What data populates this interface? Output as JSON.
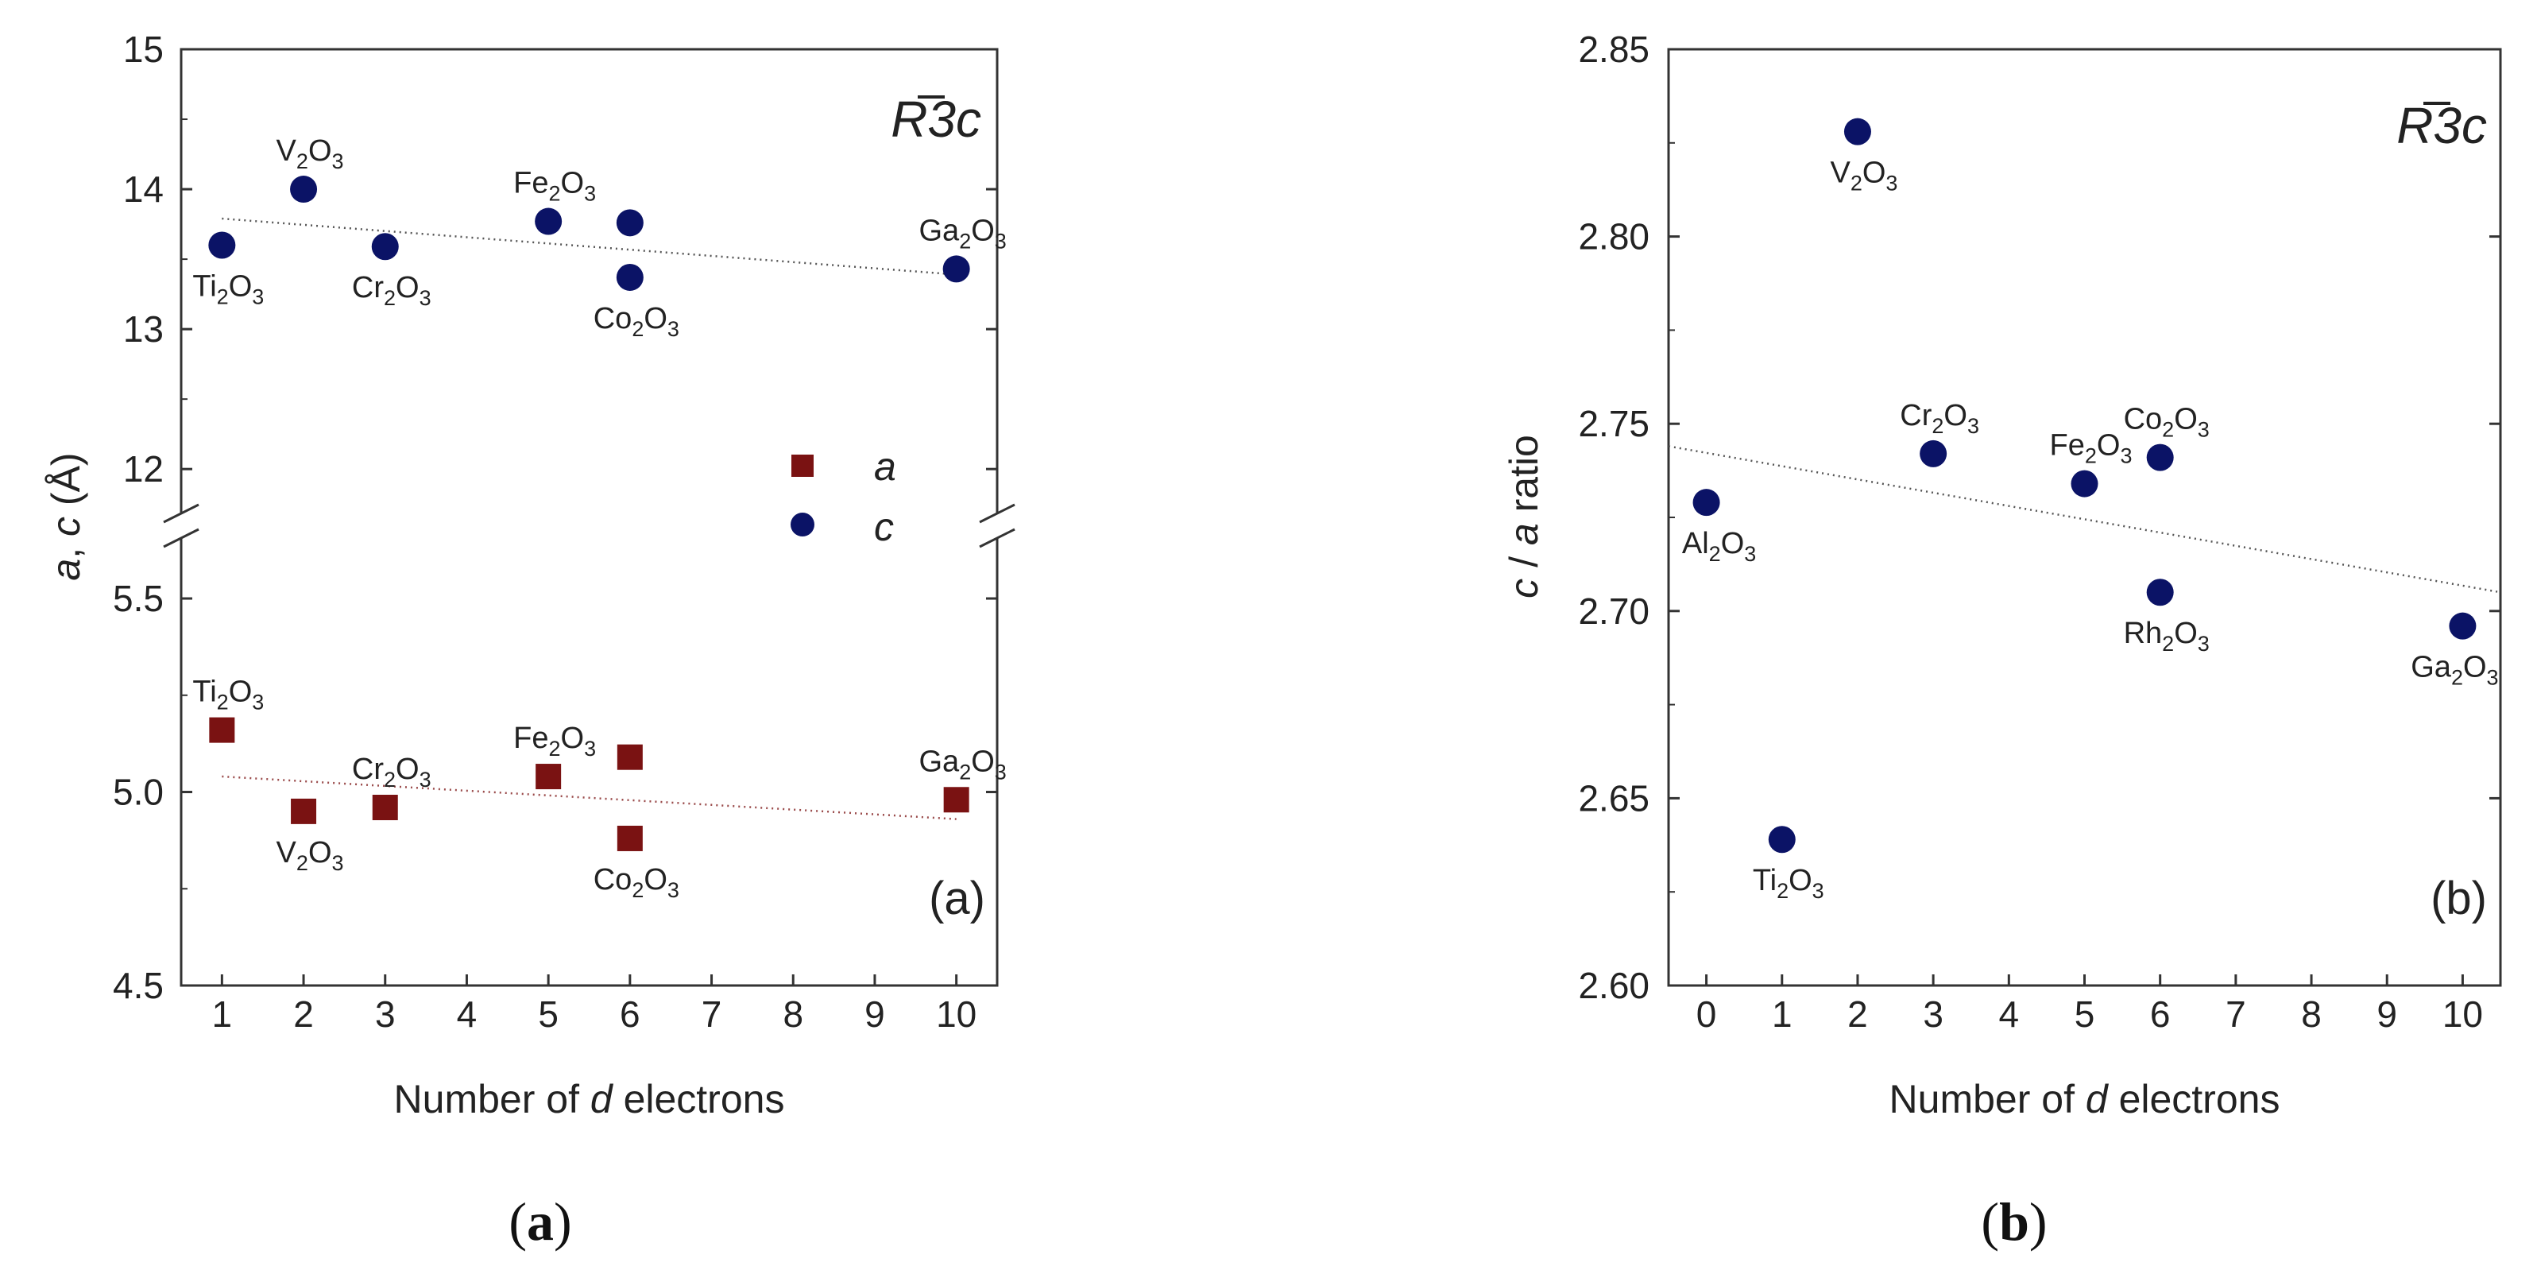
{
  "colors": {
    "circle": "#0b1366",
    "square": "#7a1212",
    "axis": "#333333",
    "trend": "#555555"
  },
  "chart_data": [
    {
      "type": "scatter",
      "panel_tag": "(a)",
      "caption": "(a)",
      "caption_letter": "a",
      "space_group": {
        "letter": "R",
        "digit": "3",
        "suffix": "c"
      },
      "xlabel": {
        "pre": "Number of ",
        "it": "d",
        "post": " electrons"
      },
      "ylabel": {
        "p1": "a",
        "p2": ", ",
        "p3": "c",
        "p4": " (Å)"
      },
      "x_ticks": [
        "1",
        "2",
        "3",
        "4",
        "5",
        "6",
        "7",
        "8",
        "9",
        "10"
      ],
      "x_range": [
        0.5,
        10.5
      ],
      "upper_axis": {
        "ylim": [
          11.7,
          15
        ],
        "ticks": [
          "12",
          "13",
          "14",
          "15"
        ]
      },
      "lower_axis": {
        "ylim": [
          4.5,
          5.65
        ],
        "ticks": [
          "4.5",
          "5.0",
          "5.5"
        ]
      },
      "legend": [
        {
          "marker": "square",
          "label": "a"
        },
        {
          "marker": "circle",
          "label": "c"
        }
      ],
      "series": [
        {
          "name": "c",
          "marker": "circle",
          "axis": "upper",
          "points": [
            {
              "x": 1,
              "y": 13.6,
              "label": [
                "Ti",
                "2",
                "O",
                "3"
              ],
              "pos": "below"
            },
            {
              "x": 2,
              "y": 14.0,
              "label": [
                "V",
                "2",
                "O",
                "3"
              ],
              "pos": "above"
            },
            {
              "x": 3,
              "y": 13.59,
              "label": [
                "Cr",
                "2",
                "O",
                "3"
              ],
              "pos": "below"
            },
            {
              "x": 5,
              "y": 13.77,
              "label": [
                "Fe",
                "2",
                "O",
                "3"
              ],
              "pos": "above"
            },
            {
              "x": 6,
              "y": 13.76,
              "label": null,
              "pos": "none"
            },
            {
              "x": 6,
              "y": 13.37,
              "label": [
                "Co",
                "2",
                "O",
                "3"
              ],
              "pos": "below"
            },
            {
              "x": 10,
              "y": 13.43,
              "label": [
                "Ga",
                "2",
                "O",
                "3"
              ],
              "pos": "above"
            }
          ],
          "trend": {
            "x": [
              1,
              10
            ],
            "y": [
              13.79,
              13.39
            ]
          }
        },
        {
          "name": "a",
          "marker": "square",
          "axis": "lower",
          "points": [
            {
              "x": 1,
              "y": 5.16,
              "label": [
                "Ti",
                "2",
                "O",
                "3"
              ],
              "pos": "above"
            },
            {
              "x": 2,
              "y": 4.95,
              "label": [
                "V",
                "2",
                "O",
                "3"
              ],
              "pos": "below"
            },
            {
              "x": 3,
              "y": 4.96,
              "label": [
                "Cr",
                "2",
                "O",
                "3"
              ],
              "pos": "above"
            },
            {
              "x": 5,
              "y": 5.04,
              "label": [
                "Fe",
                "2",
                "O",
                "3"
              ],
              "pos": "above"
            },
            {
              "x": 6,
              "y": 5.09,
              "label": null,
              "pos": "none"
            },
            {
              "x": 6,
              "y": 4.88,
              "label": [
                "Co",
                "2",
                "O",
                "3"
              ],
              "pos": "below"
            },
            {
              "x": 10,
              "y": 4.98,
              "label": [
                "Ga",
                "2",
                "O",
                "3"
              ],
              "pos": "above"
            }
          ],
          "trend": {
            "x": [
              1,
              10
            ],
            "y": [
              5.04,
              4.93
            ]
          }
        }
      ]
    },
    {
      "type": "scatter",
      "panel_tag": "(b)",
      "caption": "(b)",
      "caption_letter": "b",
      "space_group": {
        "letter": "R",
        "digit": "3",
        "suffix": "c"
      },
      "xlabel": {
        "pre": "Number of ",
        "it": "d",
        "post": " electrons"
      },
      "ylabel": {
        "p1": "c",
        "p2": " / ",
        "p3": "a",
        "p4": " ratio"
      },
      "x_ticks": [
        "0",
        "1",
        "2",
        "3",
        "4",
        "5",
        "6",
        "7",
        "8",
        "9",
        "10"
      ],
      "x_range": [
        -0.5,
        10.5
      ],
      "ylim": [
        2.6,
        2.85
      ],
      "y_ticks": [
        "2.60",
        "2.65",
        "2.70",
        "2.75",
        "2.80",
        "2.85"
      ],
      "series": [
        {
          "name": "c/a",
          "marker": "circle",
          "points": [
            {
              "x": 0,
              "y": 2.729,
              "label": [
                "Al",
                "2",
                "O",
                "3"
              ],
              "pos": "below"
            },
            {
              "x": 1,
              "y": 2.639,
              "label": [
                "Ti",
                "2",
                "O",
                "3"
              ],
              "pos": "below"
            },
            {
              "x": 2,
              "y": 2.828,
              "label": [
                "V",
                "2",
                "O",
                "3"
              ],
              "pos": "below"
            },
            {
              "x": 3,
              "y": 2.742,
              "label": [
                "Cr",
                "2",
                "O",
                "3"
              ],
              "pos": "above"
            },
            {
              "x": 5,
              "y": 2.734,
              "label": [
                "Fe",
                "2",
                "O",
                "3"
              ],
              "pos": "above"
            },
            {
              "x": 6,
              "y": 2.741,
              "label": [
                "Co",
                "2",
                "O",
                "3"
              ],
              "pos": "above"
            },
            {
              "x": 6,
              "y": 2.705,
              "label": [
                "Rh",
                "2",
                "O",
                "3"
              ],
              "pos": "below"
            },
            {
              "x": 10,
              "y": 2.696,
              "label": [
                "Ga",
                "2",
                "O",
                "3"
              ],
              "pos": "below"
            }
          ],
          "trend": {
            "x": [
              -0.5,
              10.5
            ],
            "y": [
              2.744,
              2.705
            ]
          }
        }
      ]
    }
  ]
}
